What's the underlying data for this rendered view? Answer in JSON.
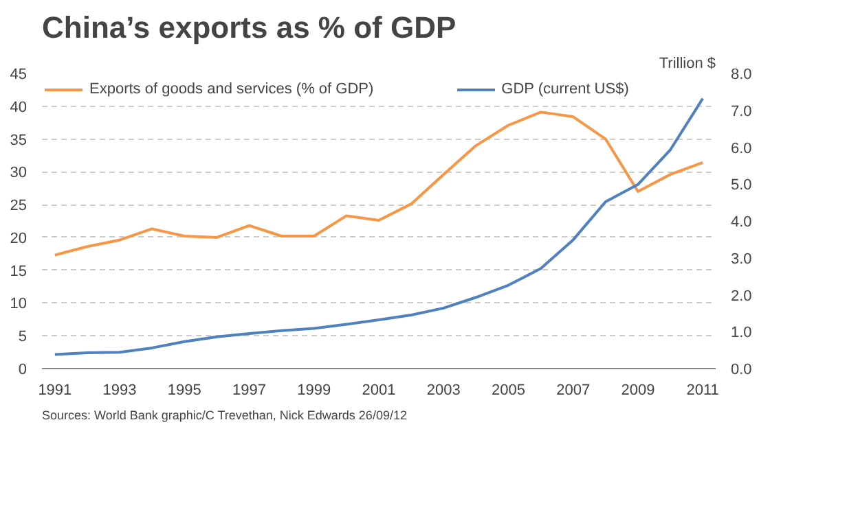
{
  "chart_data": {
    "type": "line",
    "title": "China’s exports as %  of GDP",
    "y2label": "Trillion $",
    "x": [
      1991,
      1992,
      1993,
      1994,
      1995,
      1996,
      1997,
      1998,
      1999,
      2000,
      2001,
      2002,
      2003,
      2004,
      2005,
      2006,
      2007,
      2008,
      2009,
      2010,
      2011
    ],
    "series": [
      {
        "name": "Exports of goods and services (% of GDP)",
        "color": "#f79646",
        "values": [
          17.3,
          18.6,
          19.6,
          21.3,
          20.2,
          20.0,
          21.8,
          20.2,
          20.2,
          23.3,
          22.6,
          25.1,
          29.6,
          34.0,
          37.1,
          39.1,
          38.4,
          35.0,
          27.0,
          29.6,
          31.4
        ]
      },
      {
        "name": "GDP (current US$)",
        "color": "#4f81bd",
        "axis": "y2",
        "values": [
          0.38,
          0.43,
          0.44,
          0.56,
          0.73,
          0.86,
          0.95,
          1.03,
          1.09,
          1.2,
          1.32,
          1.45,
          1.64,
          1.93,
          2.26,
          2.71,
          3.49,
          4.52,
          4.99,
          5.93,
          7.32
        ]
      }
    ],
    "xlim": [
      1990.6,
      2011.4
    ],
    "xticks": [
      1991,
      1993,
      1995,
      1997,
      1999,
      2001,
      2003,
      2005,
      2007,
      2009,
      2011
    ],
    "ylim": [
      0,
      45
    ],
    "yticks": [
      0,
      5,
      10,
      15,
      20,
      25,
      30,
      35,
      40,
      45
    ],
    "y2lim": [
      0,
      8
    ],
    "y2ticks": [
      {
        "value": 0,
        "label": "0.0"
      },
      {
        "value": 1,
        "label": "1.0"
      },
      {
        "value": 2,
        "label": "2.0"
      },
      {
        "value": 3,
        "label": "3.0"
      },
      {
        "value": 4,
        "label": "4.0"
      },
      {
        "value": 5,
        "label": "5.0"
      },
      {
        "value": 6,
        "label": "6.0"
      },
      {
        "value": 7,
        "label": "7.0"
      },
      {
        "value": 8,
        "label": "8.0"
      }
    ],
    "grid": "y",
    "legend": "top",
    "marker": "none",
    "line_style": "solid",
    "annotations": [
      "Sources: World Bank    graphic/C Trevethan, Nick Edwards 26/09/12"
    ]
  }
}
